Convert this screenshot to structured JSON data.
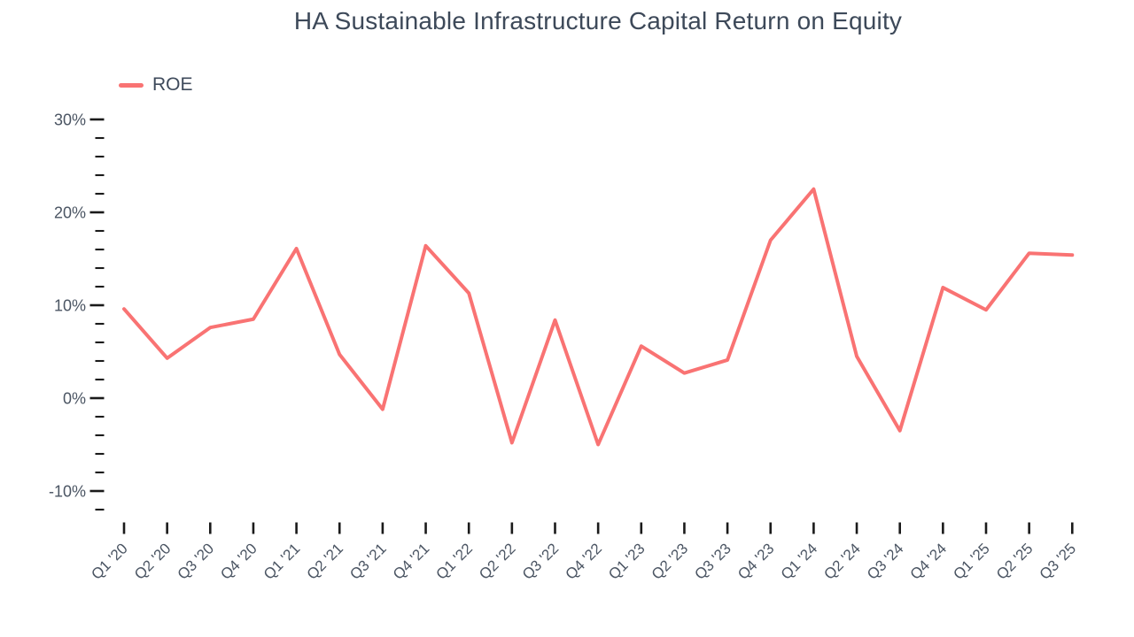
{
  "page": {
    "title": "HA Sustainable Infrastructure Capital Return on Equity"
  },
  "legend": {
    "label": "ROE"
  },
  "chart_data": {
    "type": "line",
    "title": "HA Sustainable Infrastructure Capital Return on Equity",
    "categories": [
      "Q1 '20",
      "Q2 '20",
      "Q3 '20",
      "Q4 '20",
      "Q1 '21",
      "Q2 '21",
      "Q3 '21",
      "Q4 '21",
      "Q1 '22",
      "Q2 '22",
      "Q3 '22",
      "Q4 '22",
      "Q1 '23",
      "Q2 '23",
      "Q3 '23",
      "Q4 '23",
      "Q1 '24",
      "Q2 '24",
      "Q3 '24",
      "Q4 '24",
      "Q1 '25",
      "Q2 '25",
      "Q3 '25"
    ],
    "series": [
      {
        "name": "ROE",
        "values": [
          9.6,
          4.3,
          7.6,
          8.5,
          16.1,
          4.7,
          -1.2,
          16.4,
          11.3,
          -4.8,
          8.4,
          -5.0,
          5.6,
          2.7,
          4.1,
          17.0,
          22.5,
          4.5,
          -3.5,
          11.9,
          9.5,
          15.6,
          15.4
        ]
      }
    ],
    "xlabel": "",
    "ylabel": "",
    "ylim": [
      -12,
      30
    ],
    "y_axis": {
      "major_ticks": [
        {
          "label": "30%",
          "value": 30
        },
        {
          "label": "20%",
          "value": 20
        },
        {
          "label": "10%",
          "value": 10
        },
        {
          "label": "0%",
          "value": 0
        },
        {
          "label": "-10%",
          "value": -10
        }
      ],
      "minor_tick_step": 2
    },
    "grid": false,
    "legend_position": "top-left",
    "colors": {
      "line": "#F97373",
      "axis_text": "#4B5563",
      "tick": "#1A1A1A",
      "title_text": "#3D4959"
    }
  }
}
